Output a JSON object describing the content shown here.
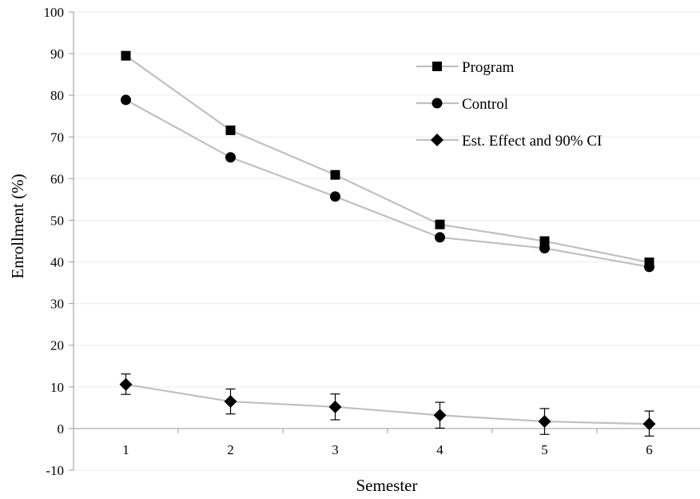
{
  "chart_data": {
    "type": "line",
    "title": "",
    "xlabel": "Semester",
    "ylabel": "Enrollment (%)",
    "x": [
      1,
      2,
      3,
      4,
      5,
      6
    ],
    "xticks": [
      "1",
      "2",
      "3",
      "4",
      "5",
      "6"
    ],
    "ylim": [
      -10,
      100
    ],
    "yticks": [
      "-10",
      "0",
      "10",
      "20",
      "30",
      "40",
      "50",
      "60",
      "70",
      "80",
      "90",
      "100"
    ],
    "grid": true,
    "legend_position": "top-right",
    "series": [
      {
        "name": "Program",
        "marker": "square",
        "color": "#000000",
        "line_color": "#c0c0c0",
        "values": [
          89.5,
          71.6,
          60.9,
          49.0,
          45.0,
          39.9
        ]
      },
      {
        "name": "Control",
        "marker": "circle",
        "color": "#000000",
        "line_color": "#c0c0c0",
        "values": [
          78.9,
          65.1,
          55.7,
          45.9,
          43.3,
          38.8
        ]
      },
      {
        "name": "Est. Effect and 90% CI",
        "marker": "diamond",
        "color": "#000000",
        "line_color": "#c0c0c0",
        "values": [
          10.6,
          6.5,
          5.2,
          3.2,
          1.7,
          1.1
        ],
        "ci_low": [
          8.2,
          3.5,
          2.1,
          0.1,
          -1.4,
          -1.8
        ],
        "ci_high": [
          13.1,
          9.5,
          8.3,
          6.3,
          4.8,
          4.2
        ]
      }
    ]
  }
}
